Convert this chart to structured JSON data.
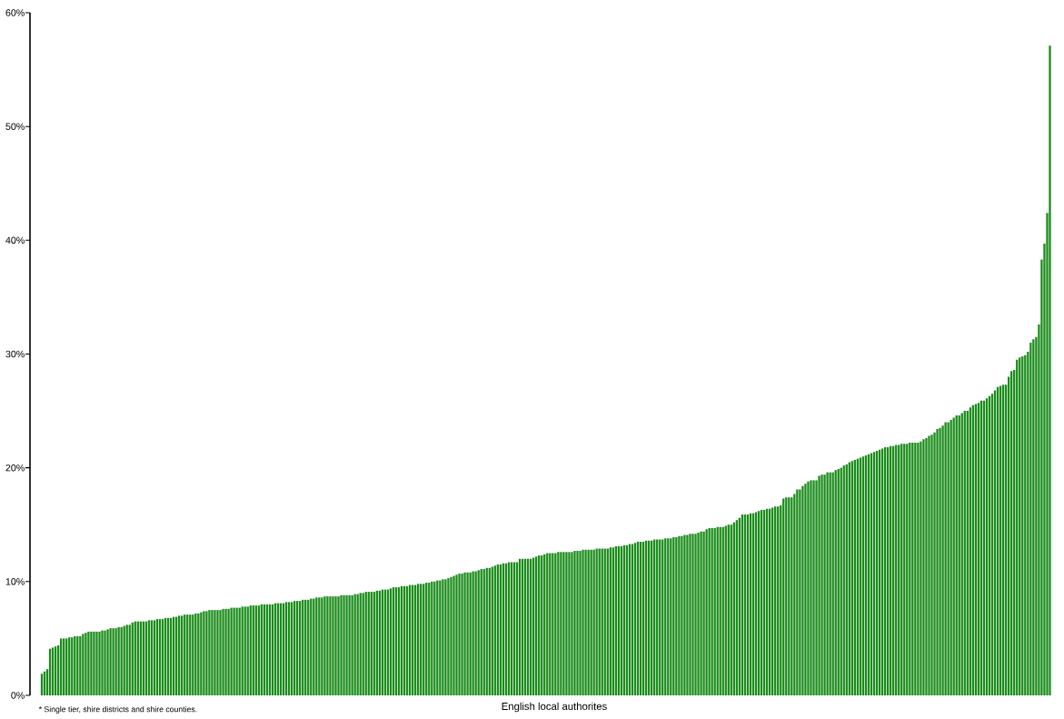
{
  "chart_data": {
    "type": "bar",
    "xlabel": "English local authorites",
    "annotations": [
      "* Single tier, shire districts and shire counties."
    ],
    "color": "#1a8c1a",
    "ylim": [
      0,
      60
    ],
    "yticks": [
      {
        "value": 0,
        "label": "0%"
      },
      {
        "value": 10,
        "label": "10%"
      },
      {
        "value": 20,
        "label": "20%"
      },
      {
        "value": 30,
        "label": "30%"
      },
      {
        "value": 40,
        "label": "40%"
      },
      {
        "value": 50,
        "label": "50%"
      },
      {
        "value": 60,
        "label": "60%"
      }
    ],
    "tick_labels": "y",
    "categories": [
      null,
      null,
      null,
      null,
      null,
      null,
      null,
      null,
      null,
      null,
      null,
      null,
      null,
      null,
      null,
      null,
      null,
      null,
      null,
      null,
      null,
      null,
      null,
      null,
      null,
      null,
      null,
      null,
      null,
      null,
      null,
      null,
      null,
      null,
      null,
      null,
      null,
      null,
      null,
      null,
      null,
      null,
      null,
      null,
      null,
      null,
      null,
      null,
      null,
      null,
      null,
      null,
      null,
      null,
      null,
      null,
      null,
      null,
      null,
      null,
      null,
      null,
      null,
      null,
      null,
      null,
      null,
      null,
      null,
      null,
      null,
      null,
      null,
      null,
      null,
      null,
      null,
      null,
      null,
      null,
      null,
      null,
      null,
      null,
      null,
      null,
      null,
      null,
      null,
      null,
      null,
      null,
      null,
      null,
      null,
      null,
      null,
      null,
      null,
      null,
      null,
      null,
      null,
      null,
      null,
      null,
      null,
      null,
      null,
      null,
      null,
      null,
      null,
      null,
      null,
      null,
      null,
      null,
      null,
      null,
      null,
      null,
      null,
      null,
      null,
      null,
      null,
      null,
      null,
      null,
      null,
      null,
      null,
      null,
      null,
      null,
      null,
      null,
      null,
      null,
      null,
      null,
      null,
      null,
      null,
      null,
      null,
      null,
      null,
      null,
      null,
      null,
      null,
      null,
      null,
      null,
      null,
      null,
      null,
      null,
      null,
      null,
      null,
      null,
      null,
      null,
      null,
      null,
      null,
      null,
      null,
      null,
      null,
      null,
      null,
      null,
      null,
      null,
      null,
      null,
      null,
      null,
      null,
      null,
      null,
      null,
      null,
      null,
      null,
      null,
      null,
      null,
      null,
      null,
      null,
      null,
      null,
      null,
      null,
      null,
      null,
      null,
      null,
      null,
      null,
      null,
      null,
      null,
      null,
      null,
      null,
      null,
      null,
      null,
      null,
      null,
      null,
      null,
      null,
      null,
      null,
      null,
      null,
      null,
      null,
      null,
      null,
      null,
      null,
      null,
      null,
      null,
      null,
      null,
      null,
      null,
      null,
      null,
      null,
      null,
      null,
      null,
      null,
      null,
      null,
      null,
      null,
      null,
      null,
      null,
      null,
      null,
      null,
      null,
      null,
      null,
      null,
      null,
      null,
      null,
      null,
      null,
      null,
      null,
      null,
      null,
      null,
      null,
      null,
      null,
      null,
      null,
      null,
      null,
      null,
      null,
      null,
      null,
      null,
      null,
      null,
      null,
      null,
      null,
      null,
      null,
      null,
      null,
      null,
      null,
      null,
      null,
      null,
      null,
      null,
      null,
      null,
      null,
      null,
      null,
      null,
      null,
      null,
      null,
      null,
      null,
      null,
      null,
      null,
      null,
      null,
      null,
      null,
      null,
      null,
      null,
      null,
      null,
      null,
      null,
      null,
      null,
      null,
      null,
      null,
      null,
      null,
      null,
      null,
      null,
      null,
      null,
      null,
      null,
      null,
      null,
      null,
      null,
      null,
      null,
      null,
      null,
      null,
      null,
      null,
      null,
      null,
      null,
      null,
      null,
      null,
      null,
      null,
      null,
      null,
      null,
      null,
      null,
      null,
      null,
      null,
      null,
      null,
      null,
      null,
      null,
      null,
      null
    ],
    "values": [
      1.9,
      2.1,
      2.3,
      4.1,
      4.2,
      4.3,
      4.4,
      5.0,
      5.0,
      5.0,
      5.1,
      5.1,
      5.2,
      5.2,
      5.2,
      5.4,
      5.5,
      5.6,
      5.6,
      5.6,
      5.6,
      5.6,
      5.7,
      5.7,
      5.8,
      5.9,
      5.9,
      5.9,
      6.0,
      6.0,
      6.1,
      6.2,
      6.2,
      6.4,
      6.5,
      6.5,
      6.5,
      6.5,
      6.5,
      6.6,
      6.6,
      6.6,
      6.7,
      6.7,
      6.7,
      6.8,
      6.8,
      6.8,
      6.9,
      6.9,
      7.0,
      7.0,
      7.1,
      7.1,
      7.1,
      7.1,
      7.2,
      7.2,
      7.3,
      7.4,
      7.4,
      7.5,
      7.5,
      7.5,
      7.5,
      7.5,
      7.6,
      7.6,
      7.6,
      7.7,
      7.7,
      7.7,
      7.7,
      7.8,
      7.8,
      7.8,
      7.9,
      7.9,
      7.9,
      7.9,
      8.0,
      8.0,
      8.0,
      8.0,
      8.0,
      8.1,
      8.1,
      8.1,
      8.1,
      8.2,
      8.2,
      8.2,
      8.3,
      8.3,
      8.3,
      8.4,
      8.4,
      8.4,
      8.5,
      8.5,
      8.6,
      8.6,
      8.6,
      8.7,
      8.7,
      8.7,
      8.7,
      8.7,
      8.7,
      8.8,
      8.8,
      8.8,
      8.8,
      8.8,
      8.9,
      8.9,
      9.0,
      9.0,
      9.1,
      9.1,
      9.1,
      9.1,
      9.2,
      9.2,
      9.3,
      9.3,
      9.3,
      9.4,
      9.5,
      9.5,
      9.5,
      9.6,
      9.6,
      9.6,
      9.7,
      9.7,
      9.7,
      9.8,
      9.8,
      9.8,
      9.9,
      9.9,
      10.0,
      10.0,
      10.1,
      10.1,
      10.2,
      10.2,
      10.3,
      10.4,
      10.5,
      10.6,
      10.7,
      10.7,
      10.8,
      10.8,
      10.8,
      10.9,
      10.9,
      11.0,
      11.1,
      11.1,
      11.2,
      11.2,
      11.3,
      11.4,
      11.5,
      11.5,
      11.6,
      11.6,
      11.7,
      11.7,
      11.7,
      11.7,
      12.0,
      12.0,
      12.0,
      12.0,
      12.0,
      12.1,
      12.2,
      12.3,
      12.3,
      12.4,
      12.5,
      12.5,
      12.5,
      12.5,
      12.6,
      12.6,
      12.6,
      12.6,
      12.6,
      12.6,
      12.7,
      12.7,
      12.7,
      12.8,
      12.8,
      12.8,
      12.8,
      12.8,
      12.9,
      12.9,
      12.9,
      12.9,
      12.9,
      13.0,
      13.0,
      13.1,
      13.1,
      13.1,
      13.2,
      13.2,
      13.3,
      13.3,
      13.4,
      13.5,
      13.5,
      13.5,
      13.6,
      13.6,
      13.6,
      13.7,
      13.7,
      13.7,
      13.7,
      13.8,
      13.8,
      13.8,
      13.9,
      13.9,
      14.0,
      14.0,
      14.1,
      14.1,
      14.2,
      14.2,
      14.2,
      14.3,
      14.4,
      14.4,
      14.6,
      14.7,
      14.7,
      14.7,
      14.8,
      14.8,
      14.8,
      14.9,
      15.0,
      15.0,
      15.2,
      15.4,
      15.6,
      15.9,
      15.9,
      15.9,
      16.0,
      16.0,
      16.1,
      16.2,
      16.3,
      16.3,
      16.4,
      16.4,
      16.5,
      16.6,
      16.6,
      16.7,
      17.3,
      17.4,
      17.4,
      17.4,
      17.7,
      18.1,
      18.1,
      18.4,
      18.6,
      18.8,
      18.9,
      18.9,
      18.9,
      19.3,
      19.4,
      19.4,
      19.6,
      19.6,
      19.6,
      19.8,
      19.9,
      20.0,
      20.2,
      20.3,
      20.5,
      20.6,
      20.7,
      20.8,
      20.9,
      21.0,
      21.1,
      21.2,
      21.3,
      21.4,
      21.5,
      21.6,
      21.7,
      21.8,
      21.8,
      21.9,
      21.9,
      22.0,
      22.0,
      22.1,
      22.1,
      22.1,
      22.2,
      22.2,
      22.2,
      22.2,
      22.3,
      22.5,
      22.6,
      22.8,
      22.9,
      23.1,
      23.4,
      23.5,
      23.7,
      24.0,
      24.0,
      24.2,
      24.4,
      24.6,
      24.6,
      24.8,
      25.0,
      25.0,
      25.3,
      25.5,
      25.6,
      25.7,
      25.9,
      25.9,
      26.1,
      26.3,
      26.5,
      26.8,
      27.1,
      27.2,
      27.3,
      27.3,
      28.0,
      28.5,
      28.6,
      29.5,
      29.7,
      29.8,
      29.9,
      30.2,
      31.0,
      31.3,
      31.5,
      32.6,
      38.3,
      39.7,
      42.4,
      57.1
    ]
  }
}
